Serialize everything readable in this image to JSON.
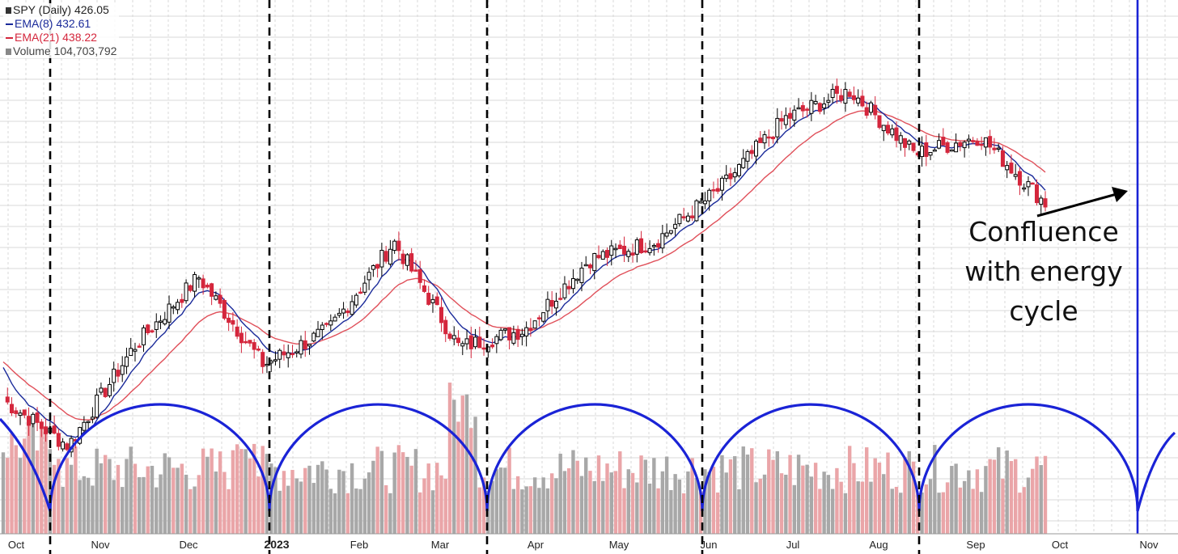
{
  "legend": {
    "ticker": "SPY (Daily) 426.05",
    "ema8": "EMA(8) 432.61",
    "ema21": "EMA(21) 438.22",
    "volume": "Volume 104,703,792"
  },
  "annotation": {
    "lines": [
      "Confluence",
      "with energy",
      "cycle"
    ]
  },
  "colors": {
    "up_candle": "#000000",
    "down_candle": "#d4263c",
    "ema8": "#1a2a9a",
    "ema21": "#e0505a",
    "volume_up": "#a8a8a8",
    "volume_down": "#eaa5a8",
    "cycle": "#1a23d6",
    "cycle_markers": "#000000",
    "grid": "#d9d9d9",
    "arrow": "#000000"
  },
  "chart_data": {
    "type": "candlestick",
    "symbol": "SPY",
    "interval": "Daily",
    "last_close": 426.05,
    "x_ticks": [
      "Oct",
      "Nov",
      "Dec",
      "2023",
      "Feb",
      "Mar",
      "Apr",
      "May",
      "Jun",
      "Jul",
      "Aug",
      "Sep",
      "Oct",
      "Nov"
    ],
    "year_tick": "2023",
    "approx_close_path": [
      {
        "date": "Oct 2022",
        "close": 370
      },
      {
        "date": "Oct 2022 low",
        "close": 357
      },
      {
        "date": "Nov 2022",
        "close": 385
      },
      {
        "date": "Dec 2022",
        "close": 405
      },
      {
        "date": "Dec 2022 low",
        "close": 380
      },
      {
        "date": "Jan 2023",
        "close": 390
      },
      {
        "date": "Feb 2023",
        "close": 415
      },
      {
        "date": "Mar 2023",
        "close": 385
      },
      {
        "date": "Mar 2023 low",
        "close": 390
      },
      {
        "date": "Apr 2023",
        "close": 410
      },
      {
        "date": "May 2023",
        "close": 415
      },
      {
        "date": "Jun 2023",
        "close": 430
      },
      {
        "date": "Jul 2023",
        "close": 450
      },
      {
        "date": "Aug 2023 high",
        "close": 458
      },
      {
        "date": "Aug 2023",
        "close": 440
      },
      {
        "date": "Sep 2023",
        "close": 445
      },
      {
        "date": "Late Sep 2023",
        "close": 426
      }
    ],
    "ema8_last": 432.61,
    "ema21_last": 438.22,
    "volume_last": 104703792,
    "cycle_lows": [
      "Oct 2022",
      "Jan 2023",
      "Mar 2023",
      "Jun 2023",
      "Aug 2023",
      "Nov 2023"
    ],
    "grid": true
  }
}
